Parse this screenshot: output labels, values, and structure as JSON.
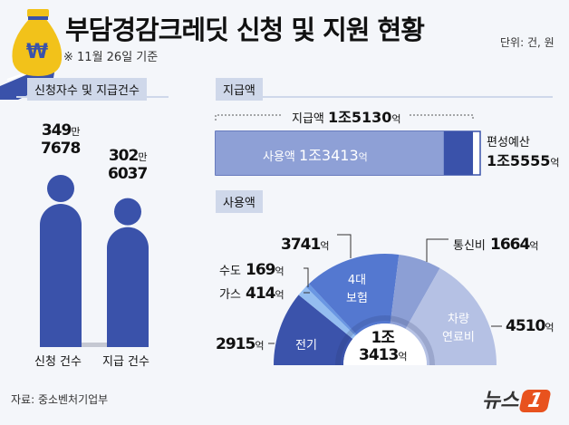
{
  "header": {
    "title": "부담경감크레딧 신청 및 지원 현황",
    "subtitle": "※ 11월 26일 기준",
    "unit": "단위: 건, 원"
  },
  "colors": {
    "background": "#f4f6fa",
    "primary": "#3a52aa",
    "section_tab": "#cfd8ea",
    "brand": "#e8521e"
  },
  "icons": {
    "logo": "money-bag-icon"
  },
  "left": {
    "section": "신청자수 및 지급건수"
  },
  "right": {
    "section_paid": "지급액",
    "section_used": "사용액"
  },
  "source": "자료: 중소벤처기업부",
  "brand": {
    "name": "뉴스",
    "mark": "1"
  },
  "chart_data": [
    {
      "type": "bar",
      "title": "신청자수 및 지급건수",
      "categories": [
        "신청 건수",
        "지급 건수"
      ],
      "values": [
        3497678,
        3026037
      ],
      "labels": [
        {
          "top": "349",
          "top_unit": "만",
          "bottom": "7678"
        },
        {
          "top": "302",
          "top_unit": "만",
          "bottom": "6037"
        }
      ]
    },
    {
      "type": "bar",
      "title": "지급액",
      "orientation": "horizontal",
      "unit": "억",
      "budget": {
        "label": "편성예산",
        "value": 15555,
        "text": "1조5555",
        "unit": "억"
      },
      "paid": {
        "label": "지급액",
        "value": 15130,
        "text": "1조5130",
        "unit": "억"
      },
      "used": {
        "label": "사용액",
        "value": 13413,
        "text": "1조3413",
        "unit": "억"
      }
    },
    {
      "type": "pie",
      "title": "사용액",
      "shape": "half-donut",
      "unit": "억",
      "total": {
        "text_top": "1조",
        "text_bottom": "3413",
        "unit": "억",
        "value": 13413
      },
      "slices": [
        {
          "name": "전기",
          "value": 2915,
          "text": "2915",
          "color": "#3b53ab"
        },
        {
          "name": "가스",
          "value": 414,
          "text": "414",
          "color": "#94bdf0"
        },
        {
          "name": "수도",
          "value": 169,
          "text": "169",
          "color": "#6a97e3"
        },
        {
          "name": "4대 보험",
          "name_l1": "4대",
          "name_l2": "보험",
          "value": 3741,
          "text": "3741",
          "color": "#5478d0"
        },
        {
          "name": "통신비",
          "value": 1664,
          "text": "1664",
          "color": "#8c9fd5"
        },
        {
          "name": "차량 연료비",
          "name_l1": "차량",
          "name_l2": "연료비",
          "value": 4510,
          "text": "4510",
          "color": "#b5c1e4"
        }
      ]
    }
  ]
}
